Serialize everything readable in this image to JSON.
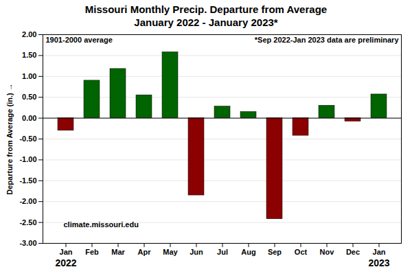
{
  "chart_data": {
    "type": "bar",
    "title": "Missouri Monthly Precip. Departure from Average",
    "subtitle": "January 2022 - January 2023*",
    "y_label": "Departure from Average (in.)",
    "categories": [
      "Jan",
      "Feb",
      "Mar",
      "Apr",
      "May",
      "Jun",
      "Jul",
      "Aug",
      "Sep",
      "Oct",
      "Nov",
      "Dec",
      "Jan"
    ],
    "values": [
      -0.3,
      0.9,
      1.18,
      0.55,
      1.58,
      -1.85,
      0.28,
      0.15,
      -2.42,
      -0.42,
      0.3,
      -0.08,
      0.57
    ],
    "colors": [
      "#8B0000",
      "#006400",
      "#006400",
      "#006400",
      "#006400",
      "#8B0000",
      "#006400",
      "#006400",
      "#8B0000",
      "#8B0000",
      "#006400",
      "#8B0000",
      "#006400"
    ],
    "ylim": [
      -3.0,
      2.0
    ],
    "yticks": [
      {
        "value": -3.0,
        "label": "-3.00"
      },
      {
        "value": -2.5,
        "label": "-2.50"
      },
      {
        "value": -2.0,
        "label": "-2.00"
      },
      {
        "value": -1.5,
        "label": "-1.50"
      },
      {
        "value": -1.0,
        "label": "-1.00"
      },
      {
        "value": -0.5,
        "label": "-0.50"
      },
      {
        "value": 0.0,
        "label": "0.00"
      },
      {
        "value": 0.5,
        "label": "0.50"
      },
      {
        "value": 1.0,
        "label": "1.00"
      },
      {
        "value": 1.5,
        "label": "1.50"
      },
      {
        "value": 2.0,
        "label": "2.00"
      }
    ],
    "grid": true,
    "annotations": [
      {
        "text": "1901-2000 average"
      },
      {
        "text": "*Sep 2022-Jan 2023 data are preliminary"
      },
      {
        "text": "climate.missouri.edu"
      },
      {
        "text": "2022",
        "x": 0
      },
      {
        "text": "2023",
        "x": 12
      }
    ]
  }
}
